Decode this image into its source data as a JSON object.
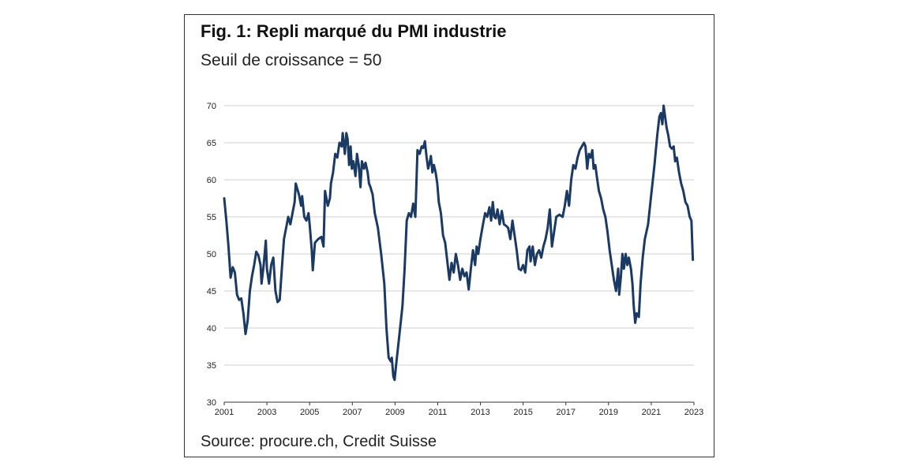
{
  "title": "Fig. 1: Repli marqué du PMI industrie",
  "subtitle": "Seuil de croissance = 50",
  "source": "Source: procure.ch, Credit Suisse",
  "colors": {
    "line": "#1b3a63",
    "grid": "#bfbfbf",
    "axis": "#333333"
  },
  "chart_data": {
    "type": "line",
    "title": "Fig. 1: Repli marqué du PMI industrie",
    "subtitle": "Seuil de croissance = 50",
    "xlabel": "",
    "ylabel": "",
    "xlim": [
      2001,
      2023
    ],
    "ylim": [
      30,
      70
    ],
    "yticks": [
      30,
      35,
      40,
      45,
      50,
      55,
      60,
      65,
      70
    ],
    "xticks": [
      "2001",
      "2003",
      "2005",
      "2007",
      "2009",
      "2011",
      "2013",
      "2015",
      "2017",
      "2019",
      "2021",
      "2023"
    ],
    "grid": true,
    "legend": "none",
    "series": [
      {
        "values": [
          [
            2001.0,
            57.5
          ],
          [
            2001.1,
            54.5
          ],
          [
            2001.2,
            51.0
          ],
          [
            2001.3,
            46.8
          ],
          [
            2001.4,
            48.2
          ],
          [
            2001.5,
            47.5
          ],
          [
            2001.6,
            44.5
          ],
          [
            2001.7,
            43.8
          ],
          [
            2001.8,
            44.0
          ],
          [
            2001.9,
            42.0
          ],
          [
            2002.0,
            39.2
          ],
          [
            2002.1,
            41.0
          ],
          [
            2002.2,
            45.0
          ],
          [
            2002.3,
            47.0
          ],
          [
            2002.4,
            48.5
          ],
          [
            2002.5,
            50.3
          ],
          [
            2002.6,
            49.8
          ],
          [
            2002.7,
            48.5
          ],
          [
            2002.75,
            46.0
          ],
          [
            2002.85,
            48.5
          ],
          [
            2002.95,
            51.8
          ],
          [
            2003.0,
            48.0
          ],
          [
            2003.1,
            46.0
          ],
          [
            2003.2,
            48.5
          ],
          [
            2003.3,
            49.5
          ],
          [
            2003.4,
            45.0
          ],
          [
            2003.5,
            43.5
          ],
          [
            2003.6,
            43.8
          ],
          [
            2003.7,
            48.0
          ],
          [
            2003.8,
            52.0
          ],
          [
            2003.9,
            53.5
          ],
          [
            2004.0,
            55.0
          ],
          [
            2004.1,
            54.0
          ],
          [
            2004.2,
            55.5
          ],
          [
            2004.3,
            57.0
          ],
          [
            2004.35,
            59.5
          ],
          [
            2004.5,
            58.0
          ],
          [
            2004.6,
            56.5
          ],
          [
            2004.65,
            57.8
          ],
          [
            2004.75,
            55.0
          ],
          [
            2004.85,
            54.5
          ],
          [
            2004.95,
            55.5
          ],
          [
            2005.0,
            54.0
          ],
          [
            2005.1,
            50.5
          ],
          [
            2005.15,
            47.8
          ],
          [
            2005.25,
            51.5
          ],
          [
            2005.4,
            52.0
          ],
          [
            2005.55,
            52.3
          ],
          [
            2005.65,
            51.0
          ],
          [
            2005.72,
            58.5
          ],
          [
            2005.85,
            56.5
          ],
          [
            2005.95,
            57.5
          ],
          [
            2006.0,
            59.5
          ],
          [
            2006.1,
            61.0
          ],
          [
            2006.2,
            63.5
          ],
          [
            2006.3,
            63.0
          ],
          [
            2006.4,
            65.0
          ],
          [
            2006.5,
            64.5
          ],
          [
            2006.55,
            66.3
          ],
          [
            2006.65,
            63.5
          ],
          [
            2006.72,
            66.3
          ],
          [
            2006.78,
            65.5
          ],
          [
            2006.85,
            62.0
          ],
          [
            2006.92,
            64.5
          ],
          [
            2006.98,
            61.5
          ],
          [
            2007.05,
            62.5
          ],
          [
            2007.15,
            60.5
          ],
          [
            2007.22,
            63.5
          ],
          [
            2007.3,
            62.0
          ],
          [
            2007.38,
            59.0
          ],
          [
            2007.45,
            62.5
          ],
          [
            2007.55,
            61.5
          ],
          [
            2007.62,
            62.3
          ],
          [
            2007.72,
            61.0
          ],
          [
            2007.78,
            59.5
          ],
          [
            2007.85,
            59.0
          ],
          [
            2007.95,
            58.0
          ],
          [
            2008.05,
            55.5
          ],
          [
            2008.2,
            53.5
          ],
          [
            2008.35,
            50.0
          ],
          [
            2008.5,
            46.0
          ],
          [
            2008.6,
            40.0
          ],
          [
            2008.7,
            36.0
          ],
          [
            2008.8,
            35.5
          ],
          [
            2008.85,
            36.0
          ],
          [
            2008.92,
            33.5
          ],
          [
            2008.98,
            33.0
          ],
          [
            2009.05,
            35.0
          ],
          [
            2009.2,
            39.0
          ],
          [
            2009.35,
            43.0
          ],
          [
            2009.45,
            48.0
          ],
          [
            2009.55,
            54.5
          ],
          [
            2009.65,
            55.5
          ],
          [
            2009.75,
            55.0
          ],
          [
            2009.85,
            56.8
          ],
          [
            2009.95,
            55.0
          ],
          [
            2010.05,
            64.0
          ],
          [
            2010.15,
            63.5
          ],
          [
            2010.25,
            64.5
          ],
          [
            2010.32,
            64.3
          ],
          [
            2010.4,
            65.2
          ],
          [
            2010.48,
            63.0
          ],
          [
            2010.55,
            61.5
          ],
          [
            2010.62,
            62.3
          ],
          [
            2010.68,
            63.2
          ],
          [
            2010.75,
            61.0
          ],
          [
            2010.82,
            62.0
          ],
          [
            2010.9,
            61.0
          ],
          [
            2010.98,
            59.5
          ],
          [
            2011.05,
            57.0
          ],
          [
            2011.15,
            55.5
          ],
          [
            2011.25,
            52.5
          ],
          [
            2011.35,
            51.5
          ],
          [
            2011.45,
            49.0
          ],
          [
            2011.55,
            46.5
          ],
          [
            2011.65,
            48.8
          ],
          [
            2011.75,
            47.5
          ],
          [
            2011.85,
            50.0
          ],
          [
            2011.95,
            48.5
          ],
          [
            2012.05,
            46.5
          ],
          [
            2012.15,
            48.0
          ],
          [
            2012.25,
            47.0
          ],
          [
            2012.35,
            47.5
          ],
          [
            2012.45,
            45.2
          ],
          [
            2012.55,
            48.0
          ],
          [
            2012.65,
            50.5
          ],
          [
            2012.75,
            48.5
          ],
          [
            2012.82,
            51.0
          ],
          [
            2012.9,
            50.0
          ],
          [
            2013.0,
            52.0
          ],
          [
            2013.12,
            54.0
          ],
          [
            2013.22,
            55.5
          ],
          [
            2013.32,
            55.0
          ],
          [
            2013.42,
            56.3
          ],
          [
            2013.5,
            54.5
          ],
          [
            2013.58,
            57.0
          ],
          [
            2013.65,
            55.0
          ],
          [
            2013.72,
            54.8
          ],
          [
            2013.8,
            56.0
          ],
          [
            2013.9,
            54.0
          ],
          [
            2014.0,
            55.8
          ],
          [
            2014.1,
            54.0
          ],
          [
            2014.2,
            53.8
          ],
          [
            2014.3,
            53.5
          ],
          [
            2014.4,
            52.0
          ],
          [
            2014.5,
            54.5
          ],
          [
            2014.6,
            52.5
          ],
          [
            2014.7,
            50.5
          ],
          [
            2014.8,
            48.0
          ],
          [
            2014.9,
            47.8
          ],
          [
            2015.0,
            48.5
          ],
          [
            2015.1,
            47.5
          ],
          [
            2015.2,
            50.5
          ],
          [
            2015.3,
            51.0
          ],
          [
            2015.35,
            49.0
          ],
          [
            2015.45,
            51.0
          ],
          [
            2015.55,
            48.5
          ],
          [
            2015.65,
            50.0
          ],
          [
            2015.75,
            50.5
          ],
          [
            2015.85,
            49.5
          ],
          [
            2015.95,
            51.0
          ],
          [
            2016.05,
            52.0
          ],
          [
            2016.15,
            53.5
          ],
          [
            2016.25,
            56.0
          ],
          [
            2016.35,
            51.0
          ],
          [
            2016.45,
            53.0
          ],
          [
            2016.55,
            55.0
          ],
          [
            2016.7,
            55.3
          ],
          [
            2016.85,
            55.0
          ],
          [
            2016.95,
            56.5
          ],
          [
            2017.05,
            58.5
          ],
          [
            2017.15,
            56.5
          ],
          [
            2017.25,
            60.0
          ],
          [
            2017.35,
            62.0
          ],
          [
            2017.45,
            61.5
          ],
          [
            2017.55,
            63.0
          ],
          [
            2017.65,
            64.0
          ],
          [
            2017.75,
            64.5
          ],
          [
            2017.85,
            65.0
          ],
          [
            2017.92,
            64.5
          ],
          [
            2018.0,
            61.5
          ],
          [
            2018.08,
            63.5
          ],
          [
            2018.16,
            63.0
          ],
          [
            2018.24,
            64.0
          ],
          [
            2018.3,
            61.5
          ],
          [
            2018.38,
            62.0
          ],
          [
            2018.45,
            60.5
          ],
          [
            2018.55,
            58.5
          ],
          [
            2018.65,
            57.5
          ],
          [
            2018.75,
            56.0
          ],
          [
            2018.85,
            55.0
          ],
          [
            2018.95,
            53.0
          ],
          [
            2019.05,
            50.5
          ],
          [
            2019.15,
            48.5
          ],
          [
            2019.25,
            46.5
          ],
          [
            2019.35,
            45.0
          ],
          [
            2019.45,
            48.0
          ],
          [
            2019.5,
            44.5
          ],
          [
            2019.58,
            47.0
          ],
          [
            2019.65,
            50.0
          ],
          [
            2019.72,
            48.0
          ],
          [
            2019.8,
            50.0
          ],
          [
            2019.88,
            48.5
          ],
          [
            2019.95,
            49.5
          ],
          [
            2020.05,
            48.0
          ],
          [
            2020.12,
            46.0
          ],
          [
            2020.18,
            43.0
          ],
          [
            2020.25,
            40.7
          ],
          [
            2020.32,
            42.0
          ],
          [
            2020.42,
            41.5
          ],
          [
            2020.5,
            46.0
          ],
          [
            2020.6,
            49.5
          ],
          [
            2020.7,
            52.0
          ],
          [
            2020.85,
            54.0
          ],
          [
            2021.0,
            58.0
          ],
          [
            2021.15,
            62.0
          ],
          [
            2021.28,
            66.0
          ],
          [
            2021.38,
            68.5
          ],
          [
            2021.45,
            69.0
          ],
          [
            2021.52,
            67.5
          ],
          [
            2021.58,
            70.0
          ],
          [
            2021.65,
            68.5
          ],
          [
            2021.72,
            67.0
          ],
          [
            2021.8,
            66.0
          ],
          [
            2021.88,
            64.5
          ],
          [
            2021.96,
            64.2
          ],
          [
            2022.05,
            64.5
          ],
          [
            2022.12,
            62.5
          ],
          [
            2022.2,
            63.0
          ],
          [
            2022.3,
            61.0
          ],
          [
            2022.4,
            59.5
          ],
          [
            2022.5,
            58.5
          ],
          [
            2022.6,
            57.0
          ],
          [
            2022.7,
            56.5
          ],
          [
            2022.8,
            55.0
          ],
          [
            2022.88,
            54.5
          ],
          [
            2022.95,
            49.2
          ]
        ]
      }
    ]
  }
}
